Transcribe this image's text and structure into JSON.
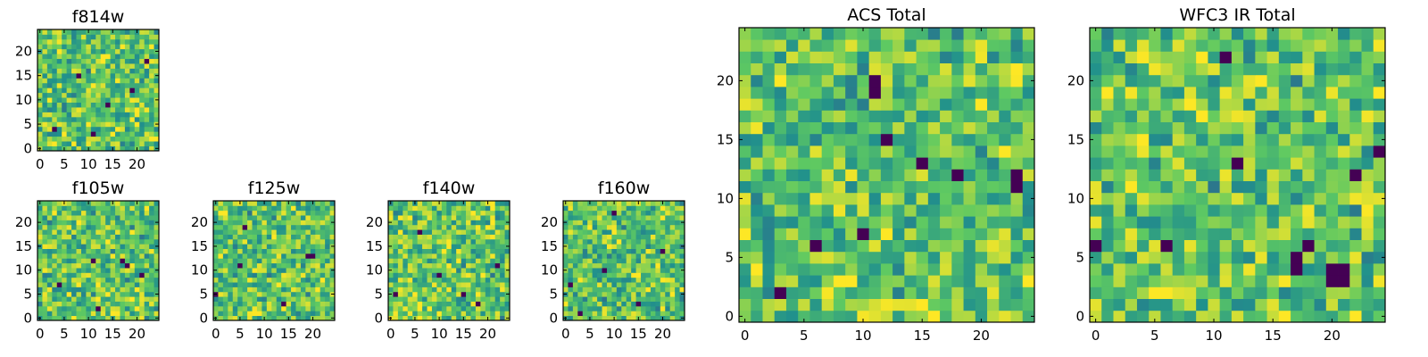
{
  "figure": {
    "background": "#ffffff"
  },
  "colormap": {
    "name": "viridis",
    "stops": [
      "#440154",
      "#3b528b",
      "#21918c",
      "#5ec962",
      "#fde725"
    ]
  },
  "chart_data": [
    {
      "type": "heatmap",
      "title": "f814w",
      "grid_size": 25,
      "xticks": [
        0,
        5,
        10,
        15,
        20
      ],
      "yticks": [
        0,
        5,
        10,
        15,
        20
      ],
      "xlim": [
        -0.5,
        24.5
      ],
      "ylim": [
        -0.5,
        24.5
      ],
      "value_range": [
        0,
        1
      ],
      "dark_cells": [
        [
          19,
          12
        ],
        [
          8,
          15
        ],
        [
          3,
          4
        ],
        [
          14,
          9
        ],
        [
          22,
          18
        ],
        [
          11,
          3
        ]
      ],
      "bright_cells": [
        [
          4,
          20
        ],
        [
          17,
          21
        ],
        [
          20,
          5
        ],
        [
          7,
          1
        ],
        [
          13,
          18
        ],
        [
          23,
          2
        ]
      ]
    },
    {
      "type": "heatmap",
      "title": "f105w",
      "grid_size": 25,
      "xticks": [
        0,
        5,
        10,
        15,
        20
      ],
      "yticks": [
        0,
        5,
        10,
        15,
        20
      ],
      "xlim": [
        -0.5,
        24.5
      ],
      "ylim": [
        -0.5,
        24.5
      ],
      "value_range": [
        0,
        1
      ],
      "dark_cells": [
        [
          17,
          12
        ],
        [
          18,
          11
        ],
        [
          11,
          12
        ],
        [
          12,
          2
        ],
        [
          4,
          7
        ],
        [
          21,
          9
        ]
      ],
      "bright_cells": [
        [
          22,
          23
        ],
        [
          3,
          22
        ],
        [
          8,
          20
        ],
        [
          20,
          6
        ],
        [
          14,
          16
        ]
      ]
    },
    {
      "type": "heatmap",
      "title": "f125w",
      "grid_size": 25,
      "xticks": [
        0,
        5,
        10,
        15,
        20
      ],
      "yticks": [
        0,
        5,
        10,
        15,
        20
      ],
      "xlim": [
        -0.5,
        24.5
      ],
      "ylim": [
        -0.5,
        24.5
      ],
      "value_range": [
        0,
        1
      ],
      "dark_cells": [
        [
          19,
          13
        ],
        [
          20,
          13
        ],
        [
          5,
          11
        ],
        [
          0,
          5
        ],
        [
          6,
          19
        ],
        [
          14,
          3
        ]
      ],
      "bright_cells": [
        [
          2,
          22
        ],
        [
          12,
          17
        ],
        [
          22,
          8
        ],
        [
          9,
          1
        ],
        [
          16,
          23
        ]
      ]
    },
    {
      "type": "heatmap",
      "title": "f140w",
      "grid_size": 25,
      "xticks": [
        0,
        5,
        10,
        15,
        20
      ],
      "yticks": [
        0,
        5,
        10,
        15,
        20
      ],
      "xlim": [
        -0.5,
        24.5
      ],
      "ylim": [
        -0.5,
        24.5
      ],
      "value_range": [
        0,
        1
      ],
      "dark_cells": [
        [
          1,
          5
        ],
        [
          15,
          5
        ],
        [
          10,
          9
        ],
        [
          22,
          11
        ],
        [
          6,
          18
        ],
        [
          18,
          3
        ]
      ],
      "bright_cells": [
        [
          12,
          15
        ],
        [
          12,
          16
        ],
        [
          4,
          21
        ],
        [
          20,
          19
        ],
        [
          8,
          2
        ]
      ]
    },
    {
      "type": "heatmap",
      "title": "f160w",
      "grid_size": 25,
      "xticks": [
        0,
        5,
        10,
        15,
        20
      ],
      "yticks": [
        0,
        5,
        10,
        15,
        20
      ],
      "xlim": [
        -0.5,
        24.5
      ],
      "ylim": [
        -0.5,
        24.5
      ],
      "value_range": [
        0,
        1
      ],
      "dark_cells": [
        [
          3,
          1
        ],
        [
          10,
          22
        ],
        [
          1,
          7
        ],
        [
          15,
          3
        ],
        [
          8,
          10
        ],
        [
          20,
          14
        ]
      ],
      "bright_cells": [
        [
          11,
          16
        ],
        [
          20,
          21
        ],
        [
          5,
          19
        ],
        [
          22,
          5
        ],
        [
          14,
          9
        ]
      ]
    },
    {
      "type": "heatmap",
      "title": "ACS Total",
      "grid_size": 25,
      "xticks": [
        0,
        5,
        10,
        15,
        20
      ],
      "yticks": [
        0,
        5,
        10,
        15,
        20
      ],
      "xlim": [
        -0.5,
        24.5
      ],
      "ylim": [
        -0.5,
        24.5
      ],
      "value_range": [
        0,
        1
      ],
      "dark_cells": [
        [
          11,
          19
        ],
        [
          11,
          20
        ],
        [
          12,
          15
        ],
        [
          15,
          13
        ],
        [
          6,
          6
        ],
        [
          3,
          2
        ],
        [
          18,
          12
        ],
        [
          23,
          12
        ],
        [
          23,
          11
        ],
        [
          10,
          7
        ]
      ],
      "bright_cells": [
        [
          3,
          20
        ],
        [
          23,
          21
        ],
        [
          15,
          1
        ],
        [
          8,
          3
        ],
        [
          20,
          18
        ],
        [
          1,
          4
        ]
      ]
    },
    {
      "type": "heatmap",
      "title": "WFC3 IR Total",
      "grid_size": 25,
      "xticks": [
        0,
        5,
        10,
        15,
        20
      ],
      "yticks": [
        0,
        5,
        10,
        15,
        20
      ],
      "xlim": [
        -0.5,
        24.5
      ],
      "ylim": [
        -0.5,
        24.5
      ],
      "value_range": [
        0,
        1
      ],
      "dark_cells": [
        [
          11,
          22
        ],
        [
          24,
          14
        ],
        [
          6,
          6
        ],
        [
          20,
          4
        ],
        [
          20,
          3
        ],
        [
          21,
          4
        ],
        [
          17,
          5
        ],
        [
          18,
          6
        ],
        [
          0,
          6
        ],
        [
          22,
          12
        ],
        [
          17,
          4
        ],
        [
          21,
          3
        ],
        [
          12,
          13
        ]
      ],
      "bright_cells": [
        [
          9,
          17
        ],
        [
          5,
          2
        ],
        [
          24,
          19
        ],
        [
          14,
          20
        ],
        [
          3,
          11
        ]
      ]
    }
  ]
}
